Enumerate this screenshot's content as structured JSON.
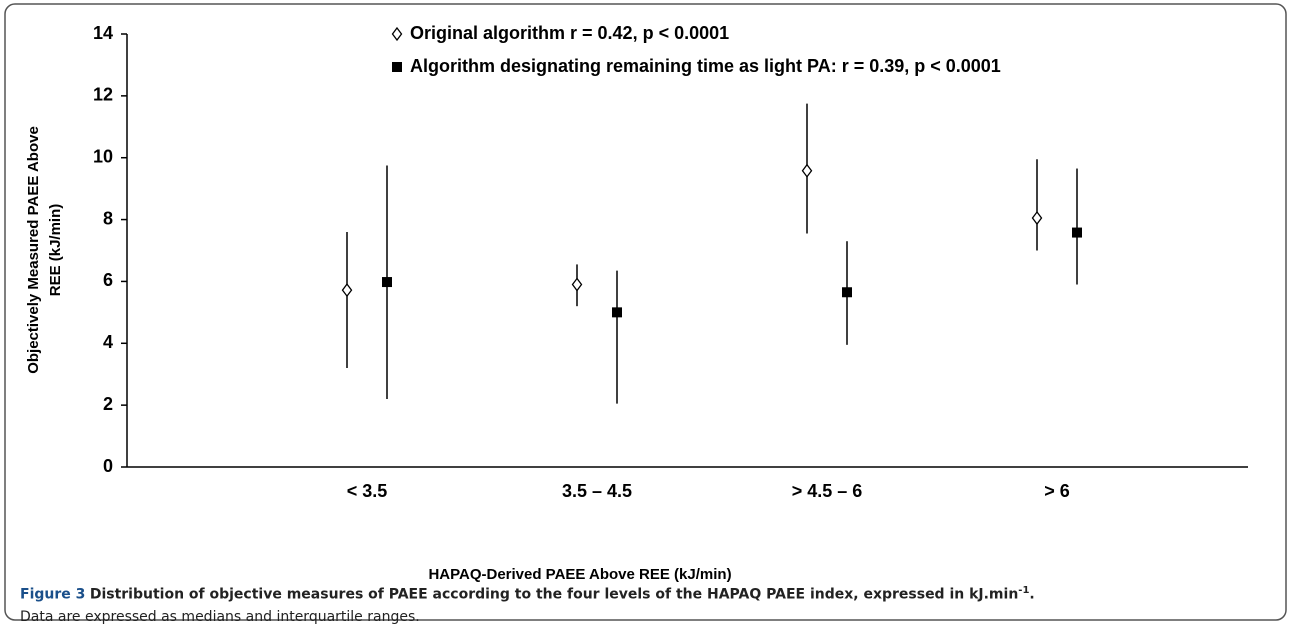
{
  "chart_data": {
    "type": "median-iqr",
    "y_label": [
      "Objectively Measured PAEE Above",
      "REE (kJ/min)"
    ],
    "x_label": "HAPAQ-Derived PAEE Above REE (kJ/min)",
    "categories": [
      "< 3.5",
      "3.5 – 4.5",
      "> 4.5 – 6",
      "> 6"
    ],
    "series": [
      {
        "name": "Original algorithm r = 0.42, p < 0.0001",
        "marker": "diamond",
        "color": "#000000",
        "values": [
          5.72,
          5.9,
          9.58,
          8.05
        ],
        "low": [
          3.2,
          5.2,
          7.55,
          7.0
        ],
        "high": [
          7.6,
          6.55,
          11.75,
          9.95
        ]
      },
      {
        "name": "Algorithm designating remaining time as light PA: r = 0.39, p < 0.0001",
        "marker": "square",
        "color": "#000000",
        "values": [
          5.98,
          5.0,
          5.65,
          7.58
        ],
        "low": [
          2.2,
          2.05,
          3.95,
          5.9
        ],
        "high": [
          9.75,
          6.35,
          7.3,
          9.65
        ]
      }
    ],
    "ylim": [
      0,
      14
    ],
    "yticks": [
      0,
      2,
      4,
      6,
      8,
      10,
      12,
      14
    ]
  },
  "caption": {
    "label": "Figure 3",
    "title": "Distribution of objective measures of PAEE according to the four levels of the HAPAQ PAEE index, expressed in kJ.min",
    "superscript": "-1",
    "end": ".",
    "note": "Data are expressed as medians and interquartile ranges."
  }
}
